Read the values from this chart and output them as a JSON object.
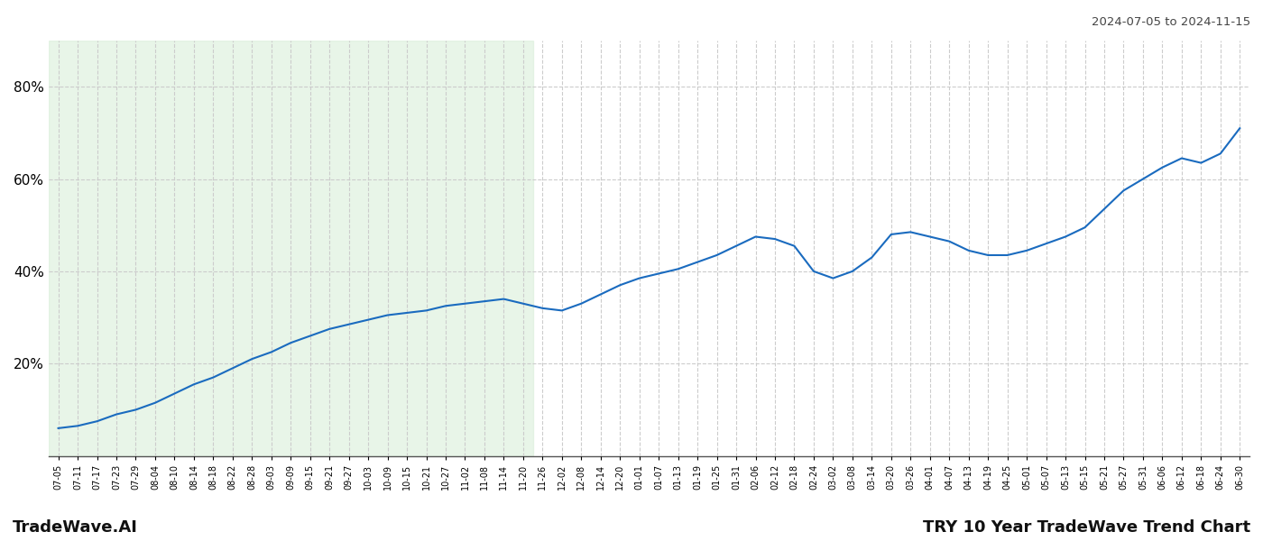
{
  "title_top_right": "2024-07-05 to 2024-11-15",
  "title_bottom_left": "TradeWave.AI",
  "title_bottom_right": "TRY 10 Year TradeWave Trend Chart",
  "bg_color": "#ffffff",
  "line_color": "#1a6bbf",
  "shade_color": "#d6edd6",
  "shade_alpha": 0.55,
  "ylim": [
    0,
    90
  ],
  "yticks": [
    20,
    40,
    60,
    80
  ],
  "x_labels": [
    "07-05",
    "07-11",
    "07-17",
    "07-23",
    "07-29",
    "08-04",
    "08-10",
    "08-14",
    "08-18",
    "08-22",
    "08-28",
    "09-03",
    "09-09",
    "09-15",
    "09-21",
    "09-27",
    "10-03",
    "10-09",
    "10-15",
    "10-21",
    "10-27",
    "11-02",
    "11-08",
    "11-14",
    "11-20",
    "11-26",
    "12-02",
    "12-08",
    "12-14",
    "12-20",
    "01-01",
    "01-07",
    "01-13",
    "01-19",
    "01-25",
    "01-31",
    "02-06",
    "02-12",
    "02-18",
    "02-24",
    "03-02",
    "03-08",
    "03-14",
    "03-20",
    "03-26",
    "04-01",
    "04-07",
    "04-13",
    "04-19",
    "04-25",
    "05-01",
    "05-07",
    "05-13",
    "05-15",
    "05-21",
    "05-27",
    "05-31",
    "06-06",
    "06-12",
    "06-18",
    "06-24",
    "06-30"
  ],
  "y_values": [
    6.0,
    6.5,
    7.5,
    9.0,
    10.0,
    11.5,
    13.5,
    15.5,
    17.0,
    19.0,
    21.0,
    22.5,
    24.5,
    26.0,
    27.5,
    28.5,
    29.5,
    30.5,
    31.0,
    31.5,
    32.5,
    33.0,
    33.5,
    34.0,
    33.0,
    32.0,
    31.5,
    33.0,
    35.0,
    37.0,
    38.5,
    39.5,
    40.5,
    42.0,
    43.5,
    45.5,
    47.5,
    47.0,
    45.5,
    40.0,
    38.5,
    40.0,
    43.0,
    48.0,
    48.5,
    47.5,
    46.5,
    44.5,
    43.5,
    43.5,
    44.5,
    46.0,
    47.5,
    49.5,
    53.5,
    57.5,
    60.0,
    62.5,
    64.5,
    63.5,
    65.5,
    71.0
  ],
  "shade_x_start_label": "07-05",
  "shade_x_end_label": "11-20",
  "grid_color": "#cccccc",
  "grid_style": "--",
  "line_width": 1.5,
  "bottom_spine_color": "#555555"
}
